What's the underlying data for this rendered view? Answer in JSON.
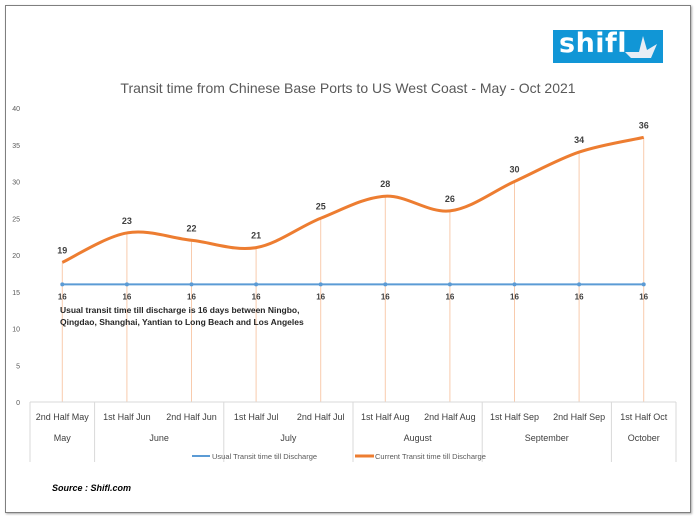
{
  "logo": {
    "text": "shifl",
    "color": "#1196d6"
  },
  "source": "Source : Shifl.com",
  "chart_data": {
    "type": "line",
    "title": "Transit time from Chinese Base Ports to US West Coast - May - Oct 2021",
    "categories": [
      "2nd Half May",
      "1st Half Jun",
      "2nd Half Jun",
      "1st Half Jul",
      "2nd Half Jul",
      "1st Half Aug",
      "2nd Half Aug",
      "1st Half Sep",
      "2nd Half  Sep",
      "1st Half Oct"
    ],
    "groups": [
      {
        "label": "May",
        "span": 1
      },
      {
        "label": "June",
        "span": 2
      },
      {
        "label": "July",
        "span": 2
      },
      {
        "label": "August",
        "span": 2
      },
      {
        "label": "September",
        "span": 2
      },
      {
        "label": "October",
        "span": 1
      }
    ],
    "series": [
      {
        "name": "Usual Transit time till Discharge",
        "values": [
          16,
          16,
          16,
          16,
          16,
          16,
          16,
          16,
          16,
          16
        ],
        "color": "#5b9bd5"
      },
      {
        "name": "Current Transit time till Discharge",
        "values": [
          19,
          23,
          22,
          21,
          25,
          28,
          26,
          30,
          34,
          36
        ],
        "color": "#ed7d31",
        "smooth": true
      }
    ],
    "ylim": [
      0,
      40
    ],
    "yticks": [
      0,
      5,
      10,
      15,
      20,
      25,
      30,
      35,
      40
    ],
    "grid": false,
    "legend": "bottom",
    "annotation": [
      "Usual transit time till discharge is 16 days between Ningbo,",
      "Qingdao, Shanghai, Yantian to Long Beach and Los Angeles"
    ]
  }
}
